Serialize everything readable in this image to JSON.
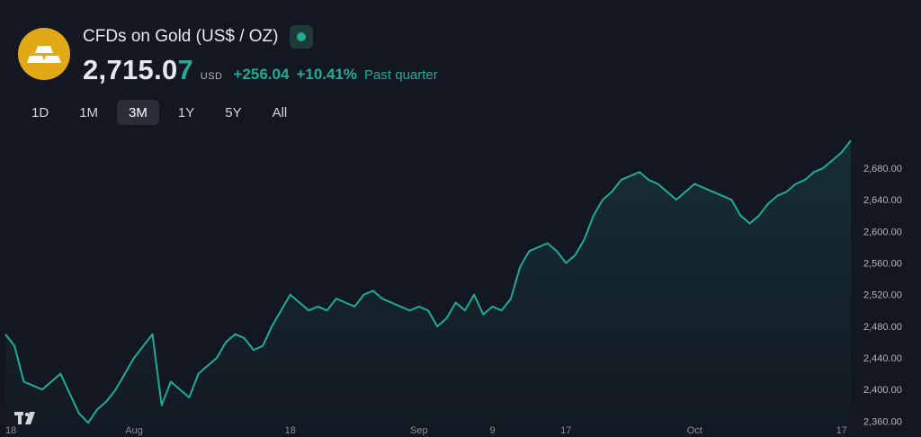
{
  "header": {
    "title": "CFDs on Gold (US$ / OZ)",
    "price_main": "2,715.0",
    "price_last_digit": "7",
    "currency": "USD",
    "change_abs": "+256.04",
    "change_pct": "+10.41%",
    "period": "Past quarter",
    "logo_icon": "gold-bars-icon",
    "status_icon": "market-open-dot-icon"
  },
  "ranges": [
    {
      "label": "1D",
      "active": false
    },
    {
      "label": "1M",
      "active": false
    },
    {
      "label": "3M",
      "active": true
    },
    {
      "label": "1Y",
      "active": false
    },
    {
      "label": "5Y",
      "active": false
    },
    {
      "label": "All",
      "active": false
    }
  ],
  "colors": {
    "background": "#131722",
    "line": "#22ab94",
    "accent_logo": "#e2a917",
    "text": "#d1d4dc"
  },
  "branding": {
    "icon": "tradingview-logo-icon"
  },
  "chart_data": {
    "type": "area",
    "xlabel": "",
    "ylabel": "",
    "ylim": [
      2340,
      2722
    ],
    "grid": false,
    "y_ticks": [
      "2,360.00",
      "2,400.00",
      "2,440.00",
      "2,480.00",
      "2,520.00",
      "2,560.00",
      "2,600.00",
      "2,640.00",
      "2,680.00"
    ],
    "y_tick_values": [
      2360,
      2400,
      2440,
      2480,
      2520,
      2560,
      2600,
      2640,
      2680
    ],
    "x_ticks": [
      {
        "label": "18",
        "date": "2024-07-18"
      },
      {
        "label": "Aug",
        "date": "2024-08-01"
      },
      {
        "label": "18",
        "date": "2024-08-18"
      },
      {
        "label": "Sep",
        "date": "2024-09-01"
      },
      {
        "label": "9",
        "date": "2024-09-09"
      },
      {
        "label": "17",
        "date": "2024-09-17"
      },
      {
        "label": "Oct",
        "date": "2024-10-01"
      },
      {
        "label": "17",
        "date": "2024-10-17"
      }
    ],
    "series": [
      {
        "x": [
          "2024-07-18",
          "2024-07-19",
          "2024-07-20",
          "2024-07-21",
          "2024-07-22",
          "2024-07-23",
          "2024-07-24",
          "2024-07-25",
          "2024-07-26",
          "2024-07-27",
          "2024-07-28",
          "2024-07-29",
          "2024-07-30",
          "2024-07-31",
          "2024-08-01",
          "2024-08-02",
          "2024-08-03",
          "2024-08-04",
          "2024-08-05",
          "2024-08-06",
          "2024-08-07",
          "2024-08-08",
          "2024-08-09",
          "2024-08-10",
          "2024-08-11",
          "2024-08-12",
          "2024-08-13",
          "2024-08-14",
          "2024-08-15",
          "2024-08-16",
          "2024-08-17",
          "2024-08-18",
          "2024-08-19",
          "2024-08-20",
          "2024-08-21",
          "2024-08-22",
          "2024-08-23",
          "2024-08-24",
          "2024-08-25",
          "2024-08-26",
          "2024-08-27",
          "2024-08-28",
          "2024-08-29",
          "2024-08-30",
          "2024-08-31",
          "2024-09-01",
          "2024-09-02",
          "2024-09-03",
          "2024-09-04",
          "2024-09-05",
          "2024-09-06",
          "2024-09-07",
          "2024-09-08",
          "2024-09-09",
          "2024-09-10",
          "2024-09-11",
          "2024-09-12",
          "2024-09-13",
          "2024-09-14",
          "2024-09-15",
          "2024-09-16",
          "2024-09-17",
          "2024-09-18",
          "2024-09-19",
          "2024-09-20",
          "2024-09-21",
          "2024-09-22",
          "2024-09-23",
          "2024-09-24",
          "2024-09-25",
          "2024-09-26",
          "2024-09-27",
          "2024-09-28",
          "2024-09-29",
          "2024-09-30",
          "2024-10-01",
          "2024-10-02",
          "2024-10-03",
          "2024-10-04",
          "2024-10-05",
          "2024-10-06",
          "2024-10-07",
          "2024-10-08",
          "2024-10-09",
          "2024-10-10",
          "2024-10-11",
          "2024-10-12",
          "2024-10-13",
          "2024-10-14",
          "2024-10-15",
          "2024-10-16",
          "2024-10-17",
          "2024-10-18"
        ],
        "values": [
          2470,
          2455,
          2410,
          2405,
          2400,
          2410,
          2420,
          2395,
          2370,
          2358,
          2375,
          2385,
          2400,
          2420,
          2440,
          2455,
          2470,
          2380,
          2410,
          2400,
          2390,
          2420,
          2430,
          2440,
          2460,
          2470,
          2465,
          2450,
          2455,
          2480,
          2500,
          2520,
          2510,
          2500,
          2505,
          2500,
          2515,
          2510,
          2505,
          2520,
          2525,
          2515,
          2510,
          2505,
          2500,
          2505,
          2500,
          2480,
          2490,
          2510,
          2500,
          2520,
          2495,
          2505,
          2500,
          2515,
          2555,
          2575,
          2580,
          2585,
          2575,
          2560,
          2570,
          2590,
          2620,
          2640,
          2650,
          2665,
          2670,
          2675,
          2665,
          2660,
          2650,
          2640,
          2650,
          2660,
          2655,
          2650,
          2645,
          2640,
          2620,
          2610,
          2620,
          2635,
          2645,
          2650,
          2660,
          2665,
          2675,
          2680,
          2690,
          2700,
          2715
        ]
      }
    ]
  }
}
